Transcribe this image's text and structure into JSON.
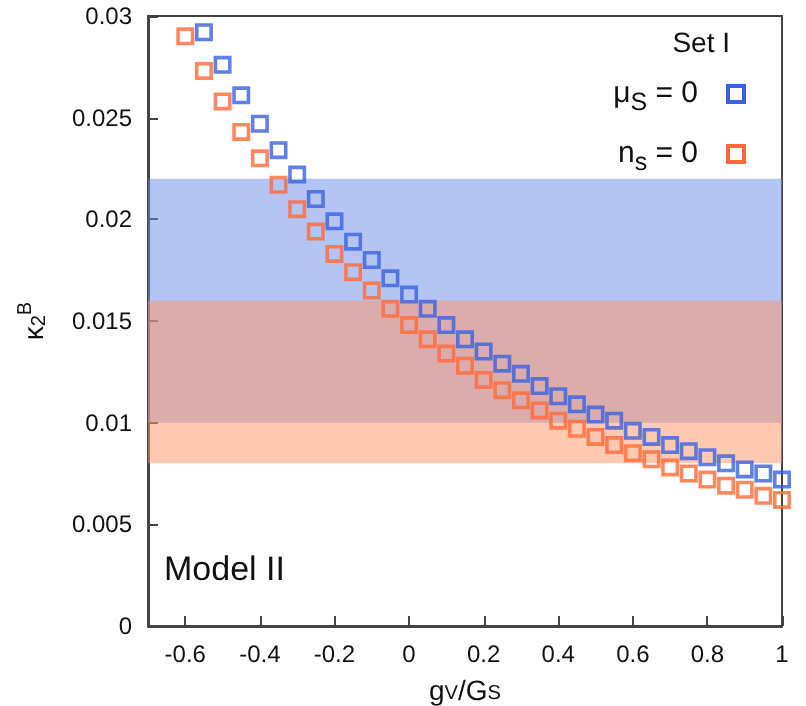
{
  "chart_data": {
    "type": "scatter",
    "xlabel": "g$_{V}$/G$_{S}$",
    "ylabel": "κ$_{2}$$^{B}$",
    "legend_title": "Set I",
    "annotations": [
      "Model II"
    ],
    "xlim": [
      -0.7,
      1
    ],
    "xticks": [
      -0.6,
      -0.4,
      -0.2,
      0,
      0.2,
      0.4,
      0.6,
      0.8,
      1
    ],
    "ylim": [
      0,
      0.03
    ],
    "yticks": [
      0,
      0.005,
      0.01,
      0.015,
      0.02,
      0.025,
      0.03
    ],
    "grid": false,
    "legend": "top right",
    "marker": "square",
    "bands": [
      {
        "axis": "y",
        "from": 0.01,
        "to": 0.022,
        "color": "#6a8ae8"
      },
      {
        "axis": "y",
        "from": 0.008,
        "to": 0.016,
        "color": "#ff9466"
      }
    ],
    "series": [
      {
        "name": "μ$_{S}$ = 0",
        "color": "#3a62e0",
        "x": [
          -0.55,
          -0.5,
          -0.45,
          -0.4,
          -0.35,
          -0.3,
          -0.25,
          -0.2,
          -0.15,
          -0.1,
          -0.05,
          0,
          0.05,
          0.1,
          0.15,
          0.2,
          0.25,
          0.3,
          0.35,
          0.4,
          0.45,
          0.5,
          0.55,
          0.6,
          0.65,
          0.7,
          0.75,
          0.8,
          0.85,
          0.9,
          0.95,
          1
        ],
        "values": [
          0.0292,
          0.0276,
          0.0261,
          0.0247,
          0.0234,
          0.0222,
          0.021,
          0.0199,
          0.0189,
          0.018,
          0.0171,
          0.0163,
          0.0156,
          0.0148,
          0.0141,
          0.0135,
          0.0129,
          0.0124,
          0.0118,
          0.0113,
          0.0109,
          0.0104,
          0.0101,
          0.0096,
          0.0093,
          0.0089,
          0.0086,
          0.0083,
          0.008,
          0.0077,
          0.0075,
          0.0072
        ]
      },
      {
        "name": "n$_{s}$ = 0",
        "color": "#ff6a3a",
        "x": [
          -0.6,
          -0.55,
          -0.5,
          -0.45,
          -0.4,
          -0.35,
          -0.3,
          -0.25,
          -0.2,
          -0.15,
          -0.1,
          -0.05,
          0,
          0.05,
          0.1,
          0.15,
          0.2,
          0.25,
          0.3,
          0.35,
          0.4,
          0.45,
          0.5,
          0.55,
          0.6,
          0.65,
          0.7,
          0.75,
          0.8,
          0.85,
          0.9,
          0.95,
          1
        ],
        "values": [
          0.029,
          0.0273,
          0.0258,
          0.0243,
          0.023,
          0.0217,
          0.0205,
          0.0194,
          0.0183,
          0.0174,
          0.0165,
          0.0156,
          0.0148,
          0.0141,
          0.0134,
          0.0128,
          0.0121,
          0.0116,
          0.0111,
          0.0106,
          0.0101,
          0.0097,
          0.0093,
          0.0089,
          0.0085,
          0.0082,
          0.0078,
          0.0075,
          0.0072,
          0.0069,
          0.0067,
          0.0064,
          0.0062
        ]
      }
    ]
  }
}
